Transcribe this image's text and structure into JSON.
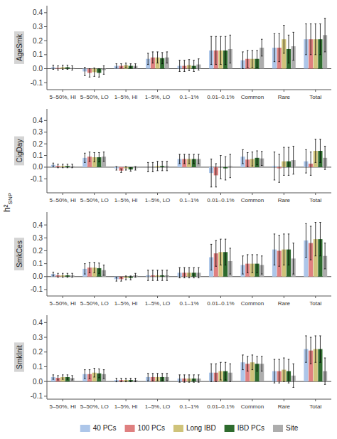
{
  "chart_data": [
    {
      "type": "bar",
      "title": "AgeSmk",
      "ylabel": "h²SNP",
      "categories": [
        "5–50%, HI",
        "5–50%, LO",
        "1–5%, HI",
        "1–5%, LO",
        "0.1–1%",
        "0.01–0.1%",
        "Common",
        "Rare",
        "Total"
      ],
      "ylim": [
        -0.15,
        0.45
      ],
      "yticks": [
        -0.1,
        {
          "value": 0.0,
          "label": "0.0"
        },
        0.1,
        0.2,
        0.3,
        0.4
      ],
      "series": [
        {
          "name": "40 PCs",
          "color": "#adc6e9",
          "values": [
            0.01,
            -0.02,
            0.02,
            0.07,
            0.02,
            0.13,
            0.06,
            0.15,
            0.21
          ],
          "errors": [
            0.015,
            0.03,
            0.015,
            0.04,
            0.04,
            0.1,
            0.06,
            0.1,
            0.11
          ]
        },
        {
          "name": "100 PCs",
          "color": "#df8080",
          "values": [
            0.005,
            -0.03,
            0.02,
            0.08,
            0.02,
            0.13,
            0.07,
            0.15,
            0.21
          ],
          "errors": [
            0.015,
            0.03,
            0.015,
            0.04,
            0.04,
            0.1,
            0.06,
            0.1,
            0.11
          ]
        },
        {
          "name": "Long IBD",
          "color": "#cfc37a",
          "values": [
            0.01,
            -0.025,
            0.025,
            0.08,
            0.025,
            0.13,
            0.07,
            0.21,
            0.21
          ],
          "errors": [
            0.015,
            0.03,
            0.015,
            0.04,
            0.04,
            0.1,
            0.06,
            0.1,
            0.11
          ]
        },
        {
          "name": "IBD PCs",
          "color": "#2e6b2e",
          "values": [
            0.01,
            -0.03,
            0.02,
            0.075,
            0.02,
            0.13,
            0.07,
            0.14,
            0.21
          ],
          "errors": [
            0.015,
            0.03,
            0.015,
            0.04,
            0.04,
            0.1,
            0.06,
            0.1,
            0.11
          ]
        },
        {
          "name": "Site",
          "color": "#adadad",
          "values": [
            0.005,
            -0.01,
            0.02,
            0.08,
            0.03,
            0.14,
            0.15,
            0.16,
            0.24
          ],
          "errors": [
            0.015,
            0.03,
            0.015,
            0.04,
            0.04,
            0.1,
            0.06,
            0.1,
            0.12
          ]
        }
      ]
    },
    {
      "type": "bar",
      "title": "CigDay",
      "categories": [
        "5–50%, HI",
        "5–50%, LO",
        "1–5%, HI",
        "1–5%, LO",
        "0.1–1%",
        "0.01–0.1%",
        "Common",
        "Rare",
        "Total"
      ],
      "ylim": [
        -0.22,
        0.5
      ],
      "yticks": [
        -0.1,
        {
          "value": 0.0,
          "label": "0.0"
        },
        0.1,
        0.2,
        0.3,
        0.4
      ],
      "series": [
        {
          "name": "40 PCs",
          "color": "#adc6e9",
          "values": [
            0.02,
            0.08,
            -0.01,
            0.0,
            0.07,
            -0.05,
            0.09,
            0.01,
            0.05
          ],
          "errors": [
            0.015,
            0.04,
            0.015,
            0.04,
            0.04,
            0.12,
            0.06,
            0.12,
            0.1
          ]
        },
        {
          "name": "100 PCs",
          "color": "#df8080",
          "values": [
            0.01,
            0.09,
            -0.03,
            0.0,
            0.07,
            -0.07,
            0.065,
            -0.01,
            0.03
          ],
          "errors": [
            0.015,
            0.04,
            0.015,
            0.04,
            0.04,
            0.1,
            0.06,
            0.12,
            0.1
          ]
        },
        {
          "name": "Long IBD",
          "color": "#cfc37a",
          "values": [
            0.01,
            0.085,
            -0.01,
            0.01,
            0.07,
            0.0,
            0.07,
            0.05,
            0.14
          ],
          "errors": [
            0.015,
            0.04,
            0.015,
            0.04,
            0.04,
            0.1,
            0.06,
            0.12,
            0.1
          ]
        },
        {
          "name": "IBD PCs",
          "color": "#2e6b2e",
          "values": [
            0.01,
            0.085,
            -0.02,
            0.01,
            0.07,
            -0.01,
            0.08,
            0.05,
            0.14
          ],
          "errors": [
            0.015,
            0.04,
            0.015,
            0.04,
            0.04,
            0.1,
            0.06,
            0.12,
            0.1
          ]
        },
        {
          "name": "Site",
          "color": "#adadad",
          "values": [
            0.01,
            0.09,
            -0.01,
            0.01,
            0.07,
            0.01,
            0.075,
            0.06,
            0.08
          ],
          "errors": [
            0.015,
            0.04,
            0.015,
            0.04,
            0.04,
            0.1,
            0.06,
            0.12,
            0.1
          ]
        }
      ]
    },
    {
      "type": "bar",
      "title": "SmkCes",
      "categories": [
        "5–50%, HI",
        "5–50%, LO",
        "1–5%, HI",
        "1–5%, LO",
        "0.1–1%",
        "0.01–0.1%",
        "Common",
        "Rare",
        "Total"
      ],
      "ylim": [
        -0.15,
        0.5
      ],
      "yticks": [
        -0.1,
        {
          "value": 0.0,
          "label": "0.0"
        },
        0.1,
        0.2,
        0.3,
        0.4
      ],
      "series": [
        {
          "name": "40 PCs",
          "color": "#adc6e9",
          "values": [
            0.02,
            0.06,
            -0.02,
            0.01,
            0.03,
            0.15,
            0.09,
            0.21,
            0.28
          ],
          "errors": [
            0.015,
            0.04,
            0.015,
            0.04,
            0.04,
            0.1,
            0.07,
            0.12,
            0.13
          ]
        },
        {
          "name": "100 PCs",
          "color": "#df8080",
          "values": [
            0.01,
            0.07,
            -0.02,
            0.01,
            0.03,
            0.18,
            0.1,
            0.2,
            0.26
          ],
          "errors": [
            0.015,
            0.04,
            0.015,
            0.04,
            0.04,
            0.1,
            0.07,
            0.12,
            0.13
          ]
        },
        {
          "name": "Long IBD",
          "color": "#cfc37a",
          "values": [
            0.01,
            0.07,
            -0.01,
            0.01,
            0.03,
            0.19,
            0.1,
            0.21,
            0.29
          ],
          "errors": [
            0.015,
            0.04,
            0.015,
            0.04,
            0.04,
            0.1,
            0.07,
            0.12,
            0.13
          ]
        },
        {
          "name": "IBD PCs",
          "color": "#2e6b2e",
          "values": [
            0.01,
            0.065,
            -0.01,
            0.01,
            0.03,
            0.19,
            0.1,
            0.21,
            0.29
          ],
          "errors": [
            0.015,
            0.04,
            0.015,
            0.04,
            0.04,
            0.1,
            0.07,
            0.12,
            0.13
          ]
        },
        {
          "name": "Site",
          "color": "#adadad",
          "values": [
            0.01,
            0.05,
            0.01,
            0.01,
            0.03,
            0.12,
            0.09,
            0.14,
            0.16
          ],
          "errors": [
            0.015,
            0.04,
            0.015,
            0.04,
            0.04,
            0.1,
            0.07,
            0.12,
            0.1
          ]
        }
      ]
    },
    {
      "type": "bar",
      "title": "SmkInit",
      "legend": "bottom",
      "categories": [
        "5–50%, HI",
        "5–50%, LO",
        "1–5%, HI",
        "1–5%, LO",
        "0.1–1%",
        "0.01–0.1%",
        "Common",
        "Rare",
        "Total"
      ],
      "ylim": [
        -0.12,
        0.45
      ],
      "yticks": [
        -0.1,
        {
          "value": 0.0,
          "label": "0.0"
        },
        0.1,
        0.2,
        0.3,
        0.4
      ],
      "series": [
        {
          "name": "40 PCs",
          "color": "#adc6e9",
          "values": [
            0.03,
            0.05,
            0.01,
            0.03,
            0.02,
            0.06,
            0.13,
            0.07,
            0.22
          ],
          "errors": [
            0.015,
            0.03,
            0.012,
            0.025,
            0.025,
            0.06,
            0.05,
            0.08,
            0.09
          ]
        },
        {
          "name": "100 PCs",
          "color": "#df8080",
          "values": [
            0.025,
            0.05,
            0.01,
            0.03,
            0.02,
            0.06,
            0.12,
            0.07,
            0.21
          ],
          "errors": [
            0.015,
            0.03,
            0.012,
            0.025,
            0.025,
            0.06,
            0.05,
            0.08,
            0.09
          ]
        },
        {
          "name": "Long IBD",
          "color": "#cfc37a",
          "values": [
            0.03,
            0.06,
            0.01,
            0.03,
            0.02,
            0.07,
            0.13,
            0.08,
            0.22
          ],
          "errors": [
            0.015,
            0.03,
            0.012,
            0.025,
            0.025,
            0.06,
            0.05,
            0.08,
            0.09
          ]
        },
        {
          "name": "IBD PCs",
          "color": "#2e6b2e",
          "values": [
            0.03,
            0.055,
            0.01,
            0.03,
            0.02,
            0.07,
            0.12,
            0.07,
            0.22
          ],
          "errors": [
            0.015,
            0.03,
            0.012,
            0.025,
            0.025,
            0.06,
            0.05,
            0.08,
            0.09
          ]
        },
        {
          "name": "Site",
          "color": "#adadad",
          "values": [
            0.025,
            0.05,
            0.01,
            0.03,
            0.02,
            0.06,
            0.12,
            0.04,
            0.07
          ],
          "errors": [
            0.015,
            0.03,
            0.012,
            0.025,
            0.025,
            0.06,
            0.05,
            0.08,
            0.09
          ]
        }
      ]
    }
  ]
}
